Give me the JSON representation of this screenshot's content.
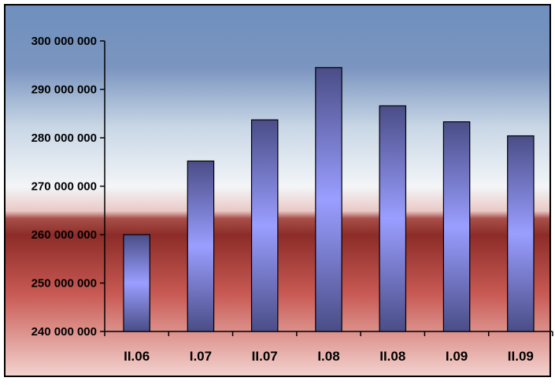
{
  "chart_data": {
    "type": "bar",
    "title": "",
    "xlabel": "",
    "ylabel": "",
    "categories": [
      "II.06",
      "I.07",
      "II.07",
      "I.08",
      "II.08",
      "I.09",
      "II.09"
    ],
    "values": [
      260000000,
      275200000,
      283700000,
      294500000,
      286600000,
      283300000,
      280400000
    ],
    "ylim": [
      240000000,
      300000000
    ],
    "yticks": [
      240000000,
      250000000,
      260000000,
      270000000,
      280000000,
      290000000,
      300000000
    ],
    "ytick_labels": [
      "240 000 000",
      "250 000 000",
      "260 000 000",
      "270 000 000",
      "280 000 000",
      "290 000 000",
      "300 000 000"
    ],
    "grid": false,
    "legend": "none",
    "colors": {
      "bar_edge": "#4a4d86",
      "bar_center": "#9a9eff",
      "background_top": "#6f8fbd",
      "background_light": "#eef2f6",
      "background_dark": "#8e2f2a",
      "background_bottom": "#f1c9c5"
    }
  }
}
